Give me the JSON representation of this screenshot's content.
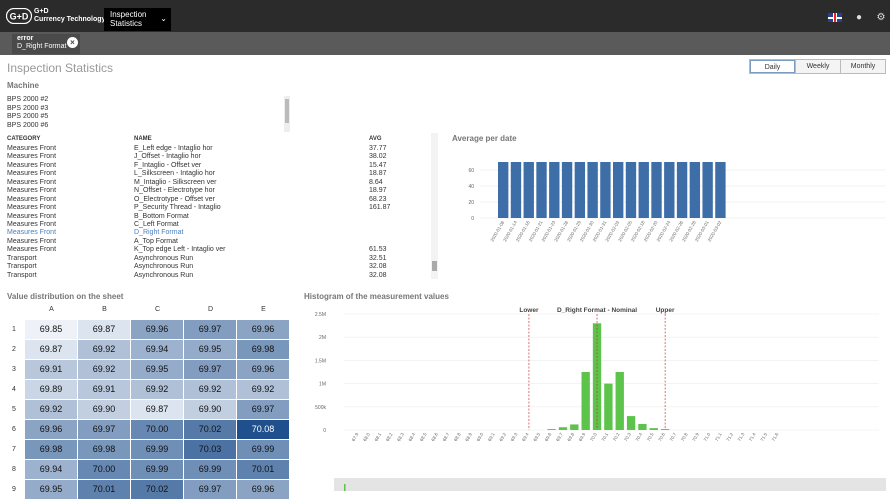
{
  "header": {
    "brand_line1": "G+D",
    "brand_line2": "Currency Technology",
    "menu_line1": "Inspection",
    "menu_line2": "Statistics"
  },
  "filter_chip": {
    "label": "error",
    "value": "D_Right Format"
  },
  "page_title": "Inspection Statistics",
  "period_tabs": [
    "Daily",
    "Weekly",
    "Monthly"
  ],
  "machine": {
    "heading": "Machine",
    "items": [
      "BPS 2000 #2",
      "BPS 2000 #3",
      "BPS 2000 #5",
      "BPS 2000 #6"
    ]
  },
  "category_table": {
    "headers": [
      "CATEGORY",
      "NAME",
      "AVG"
    ],
    "rows": [
      [
        "Measures Front",
        "E_Left edge - Intaglio hor",
        "37.77"
      ],
      [
        "Measures Front",
        "J_Offset - Intaglio hor",
        "38.02"
      ],
      [
        "Measures Front",
        "F_Intaglio - Offset ver",
        "15.47"
      ],
      [
        "Measures Front",
        "L_Silkscreen - Intaglio hor",
        "18.87"
      ],
      [
        "Measures Front",
        "M_Intaglio - Silkscreen ver",
        "8.64"
      ],
      [
        "Measures Front",
        "N_Offset - Electrotype hor",
        "18.97"
      ],
      [
        "Measures Front",
        "O_Electrotype - Offset ver",
        "68.23"
      ],
      [
        "Measures Front",
        "P_Security Thread - Intaglio",
        "161.87"
      ],
      [
        "Measures Front",
        "B_Bottom Format",
        ""
      ],
      [
        "Measures Front",
        "C_Left Format",
        ""
      ],
      [
        "Measures Front",
        "D_Right Format",
        ""
      ],
      [
        "Measures Front",
        "A_Top Format",
        ""
      ],
      [
        "Measures Front",
        "K_Top edge Left - Intaglio ver",
        "61.53"
      ],
      [
        "Transport",
        "Asynchronous Run",
        "32.51"
      ],
      [
        "Transport",
        "Asynchronous Run",
        "32.08"
      ],
      [
        "Transport",
        "Asynchronous Run",
        "32.08"
      ]
    ]
  },
  "avg_chart": {
    "heading": "Average per date",
    "chart_data": {
      "type": "bar",
      "categories": [
        "2020-01-08",
        "2020-01-14",
        "2020-01-16",
        "2020-01-21",
        "2020-01-23",
        "2020-01-28",
        "2020-01-29",
        "2020-01-30",
        "2020-01-31",
        "2020-02-03",
        "2020-02-05",
        "2020-02-18",
        "2020-02-20",
        "2020-02-24",
        "2020-02-26",
        "2020-02-28",
        "2020-03-01",
        "2020-03-02"
      ],
      "values": [
        70,
        70,
        70,
        70,
        70,
        70,
        70,
        70,
        70,
        70,
        70,
        70,
        70,
        70,
        70,
        70,
        70,
        70
      ],
      "yticks": [
        0,
        20,
        40,
        60
      ],
      "ylim": [
        0,
        80
      ],
      "color": "#3e6ea8"
    }
  },
  "heatmap": {
    "heading": "Value distribution on the sheet",
    "columns": [
      "A",
      "B",
      "C",
      "D",
      "E"
    ],
    "rows": [
      {
        "label": "1",
        "values": [
          "69.85",
          "69.87",
          "69.96",
          "69.97",
          "69.96"
        ]
      },
      {
        "label": "2",
        "values": [
          "69.87",
          "69.92",
          "69.94",
          "69.95",
          "69.98"
        ]
      },
      {
        "label": "3",
        "values": [
          "69.91",
          "69.92",
          "69.95",
          "69.97",
          "69.96"
        ]
      },
      {
        "label": "4",
        "values": [
          "69.89",
          "69.91",
          "69.92",
          "69.92",
          "69.92"
        ]
      },
      {
        "label": "5",
        "values": [
          "69.92",
          "69.90",
          "69.87",
          "69.90",
          "69.97"
        ]
      },
      {
        "label": "6",
        "values": [
          "69.96",
          "69.97",
          "70.00",
          "70.02",
          "70.08"
        ]
      },
      {
        "label": "7",
        "values": [
          "69.98",
          "69.98",
          "69.99",
          "70.03",
          "69.99"
        ]
      },
      {
        "label": "8",
        "values": [
          "69.94",
          "70.00",
          "69.99",
          "69.99",
          "70.01"
        ]
      },
      {
        "label": "9",
        "values": [
          "69.95",
          "70.01",
          "70.02",
          "69.97",
          "69.96"
        ]
      }
    ],
    "low_color": "#eef2f8",
    "high_color": "#1f4f8c"
  },
  "histogram": {
    "heading": "Histogram of the measurement values",
    "markers": [
      {
        "label": "Lower",
        "x": 69.4
      },
      {
        "label": "D_Right Format - Nominal",
        "x": 70.0
      },
      {
        "label": "Upper",
        "x": 70.6
      }
    ],
    "chart_data": {
      "type": "bar",
      "x": [
        "67.9",
        "68.0",
        "68.1",
        "68.2",
        "68.3",
        "68.4",
        "68.5",
        "68.6",
        "68.7",
        "68.8",
        "68.9",
        "69.0",
        "69.1",
        "69.2",
        "69.3",
        "69.4",
        "69.5",
        "69.6",
        "69.7",
        "69.8",
        "69.9",
        "70.0",
        "70.1",
        "70.2",
        "70.3",
        "70.4",
        "70.5",
        "70.6",
        "70.7",
        "70.8",
        "70.9",
        "71.0",
        "71.1",
        "71.2",
        "71.3",
        "71.4",
        "71.5",
        "71.6"
      ],
      "values": [
        0,
        0,
        0,
        0,
        0,
        0,
        0,
        0,
        0,
        0,
        0,
        0,
        0,
        0,
        0,
        0,
        0,
        20000,
        60000,
        120000,
        1250000,
        2300000,
        1000000,
        1250000,
        300000,
        130000,
        40000,
        20000,
        0,
        0,
        0,
        0,
        0,
        0,
        0,
        0,
        0,
        0
      ],
      "yticks": [
        "0",
        "500k",
        "1M",
        "1.5M",
        "2M",
        "2.5M"
      ],
      "ylim": [
        0,
        2500000
      ],
      "color": "#5cc44a"
    }
  }
}
